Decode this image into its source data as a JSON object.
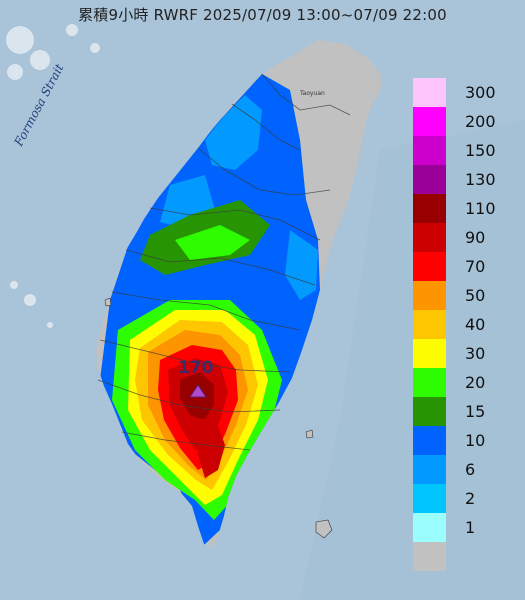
{
  "title": "累積9小時 RWRF 2025/07/09 13:00~07/09 22:00",
  "map_labels": {
    "strait": "Formosa Strait",
    "place_small": "Taoyuan"
  },
  "peak": {
    "value_label": "170",
    "marker_color": "#b04bd0"
  },
  "legend": [
    {
      "label": "300",
      "color": "#fec5fd"
    },
    {
      "label": "200",
      "color": "#fd00fe"
    },
    {
      "label": "150",
      "color": "#cc00cc"
    },
    {
      "label": "130",
      "color": "#9a0099"
    },
    {
      "label": "110",
      "color": "#980000"
    },
    {
      "label": "90",
      "color": "#cc0000"
    },
    {
      "label": "70",
      "color": "#fe0000"
    },
    {
      "label": "50",
      "color": "#fd9500"
    },
    {
      "label": "40",
      "color": "#fec600"
    },
    {
      "label": "30",
      "color": "#fffd01"
    },
    {
      "label": "20",
      "color": "#2efd01"
    },
    {
      "label": "15",
      "color": "#279503"
    },
    {
      "label": "10",
      "color": "#0163fe"
    },
    {
      "label": "6",
      "color": "#029aff"
    },
    {
      "label": "2",
      "color": "#01c6fe"
    },
    {
      "label": "1",
      "color": "#9afefd"
    },
    {
      "label": "",
      "color": "#c1c1c1"
    }
  ],
  "colors": {
    "sea": "#a9c3d8",
    "land_no_rain": "#c1c1c1"
  }
}
